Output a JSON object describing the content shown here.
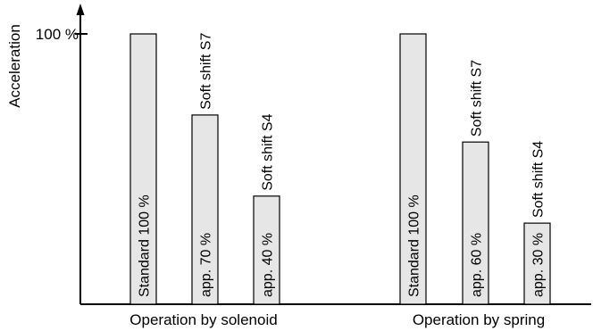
{
  "chart_data": {
    "type": "bar",
    "ylabel": "Acceleration",
    "ylim": [
      0,
      100
    ],
    "y_tick_label": "100 %",
    "y_tick_value": 100,
    "colors": {
      "bar_fill": "#e6e6e6",
      "stroke": "#000000"
    },
    "groups": [
      {
        "label": "Operation by solenoid",
        "bars": [
          {
            "value": 100,
            "inside_label": "Standard 100 %",
            "top_label": ""
          },
          {
            "value": 70,
            "inside_label": "app. 70 %",
            "top_label": "Soft shift S7"
          },
          {
            "value": 40,
            "inside_label": "app. 40 %",
            "top_label": "Soft shift S4"
          }
        ]
      },
      {
        "label": "Operation by spring",
        "bars": [
          {
            "value": 100,
            "inside_label": "Standard 100 %",
            "top_label": ""
          },
          {
            "value": 60,
            "inside_label": "app. 60 %",
            "top_label": "Soft shift S7"
          },
          {
            "value": 30,
            "inside_label": "app. 30 %",
            "top_label": "Soft shift S4"
          }
        ]
      }
    ]
  }
}
